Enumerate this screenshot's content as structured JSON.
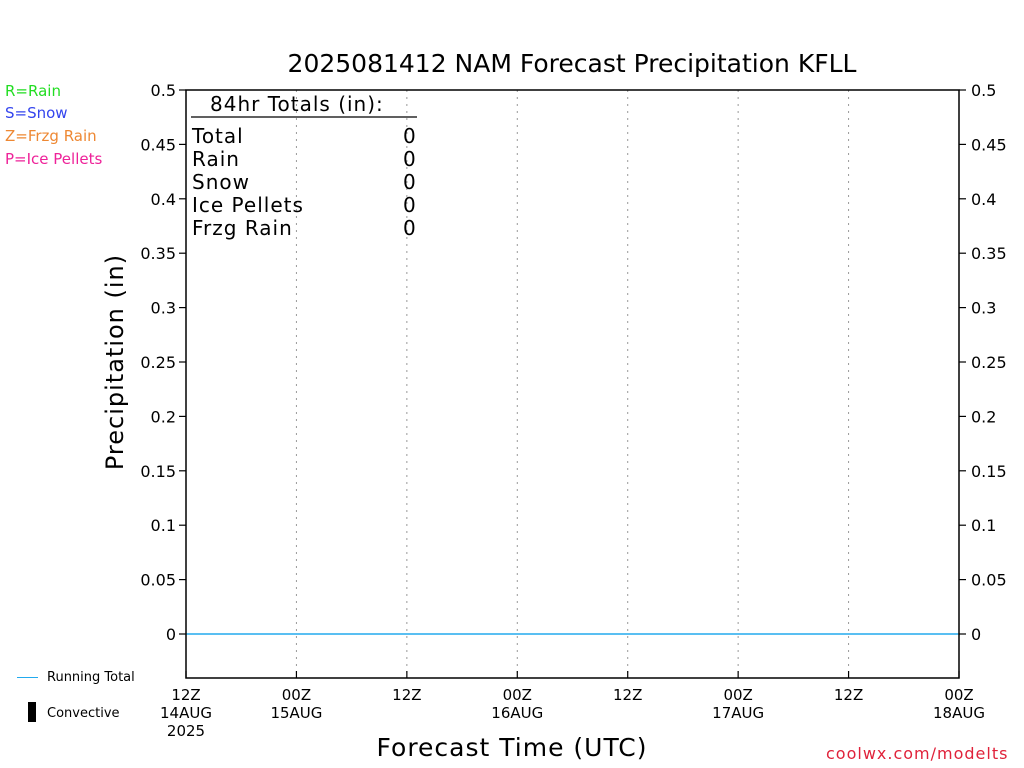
{
  "title": "2025081412 NAM Forecast Precipitation KFLL",
  "legend": [
    {
      "text": "R=Rain",
      "color": "#22dd22"
    },
    {
      "text": "S=Snow",
      "color": "#3344ee"
    },
    {
      "text": "Z=Frzg Rain",
      "color": "#ee8833"
    },
    {
      "text": "P=Ice Pellets",
      "color": "#ee2299"
    }
  ],
  "ylabel": "Precipitation (in)",
  "xlabel": "Forecast Time (UTC)",
  "credit": "coolwx.com/modelts",
  "bottom_legend": {
    "running_total": "Running Total",
    "running_total_color": "#22aaee",
    "convective": "Convective"
  },
  "totals": {
    "header": "84hr Totals (in):",
    "rows": [
      {
        "label": "Total",
        "value": "0"
      },
      {
        "label": "Rain",
        "value": "0"
      },
      {
        "label": "Snow",
        "value": "0"
      },
      {
        "label": "Ice Pellets",
        "value": "0"
      },
      {
        "label": "Frzg Rain",
        "value": "0"
      }
    ]
  },
  "chart_data": {
    "type": "line",
    "title": "2025081412 NAM Forecast Precipitation KFLL",
    "xlabel": "Forecast Time (UTC)",
    "ylabel": "Precipitation (in)",
    "ylim": [
      0,
      0.5
    ],
    "y_ticks": [
      "0",
      "0.05",
      "0.1",
      "0.15",
      "0.2",
      "0.25",
      "0.3",
      "0.35",
      "0.4",
      "0.45",
      "0.5"
    ],
    "x_ticks": [
      {
        "hour": 0,
        "lines": [
          "12Z",
          "14AUG",
          "2025"
        ]
      },
      {
        "hour": 12,
        "lines": [
          "00Z",
          "15AUG"
        ]
      },
      {
        "hour": 24,
        "lines": [
          "12Z"
        ]
      },
      {
        "hour": 36,
        "lines": [
          "00Z",
          "16AUG"
        ]
      },
      {
        "hour": 48,
        "lines": [
          "12Z"
        ]
      },
      {
        "hour": 60,
        "lines": [
          "00Z",
          "17AUG"
        ]
      },
      {
        "hour": 72,
        "lines": [
          "12Z"
        ]
      },
      {
        "hour": 84,
        "lines": [
          "00Z",
          "18AUG"
        ]
      }
    ],
    "xlim_hours": [
      0,
      84
    ],
    "grid": "vertical dotted",
    "series": [
      {
        "name": "Running Total",
        "color": "#22aaee",
        "x_hours": [
          0,
          84
        ],
        "values": [
          0,
          0
        ]
      }
    ]
  }
}
